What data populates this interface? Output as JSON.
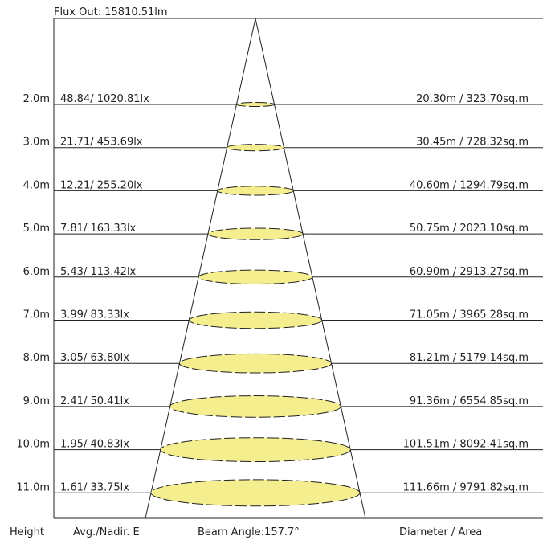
{
  "flux_label": "Flux Out: 15810.51lm",
  "footer": {
    "height": "Height",
    "illuminance": "Avg./Nadir. E",
    "beam": "Beam Angle:157.7°",
    "size": "Diameter / Area"
  },
  "rows": [
    {
      "height": "2.0m",
      "illuminance": "48.84/ 1020.81lx",
      "size": "20.30m / 323.70sq.m"
    },
    {
      "height": "3.0m",
      "illuminance": "21.71/ 453.69lx",
      "size": "30.45m / 728.32sq.m"
    },
    {
      "height": "4.0m",
      "illuminance": "12.21/ 255.20lx",
      "size": "40.60m / 1294.79sq.m"
    },
    {
      "height": "5.0m",
      "illuminance": "7.81/ 163.33lx",
      "size": "50.75m / 2023.10sq.m"
    },
    {
      "height": "6.0m",
      "illuminance": "5.43/ 113.42lx",
      "size": "60.90m / 2913.27sq.m"
    },
    {
      "height": "7.0m",
      "illuminance": "3.99/ 83.33lx",
      "size": "71.05m / 3965.28sq.m"
    },
    {
      "height": "8.0m",
      "illuminance": "3.05/ 63.80lx",
      "size": "81.21m / 5179.14sq.m"
    },
    {
      "height": "9.0m",
      "illuminance": "2.41/ 50.41lx",
      "size": "91.36m / 6554.85sq.m"
    },
    {
      "height": "10.0m",
      "illuminance": "1.95/ 40.83lx",
      "size": "101.51m / 8092.41sq.m"
    },
    {
      "height": "11.0m",
      "illuminance": "1.61/ 33.75lx",
      "size": "111.66m / 9791.82sq.m"
    }
  ],
  "colors": {
    "spot_fill": "#f4ee8e",
    "line": "#222222"
  }
}
